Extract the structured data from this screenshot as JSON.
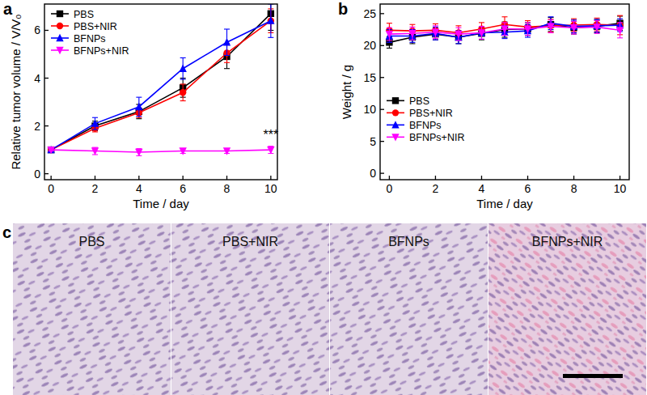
{
  "chart_data": [
    {
      "type": "line",
      "label": "a",
      "x_label": "Time / day",
      "y_label": "Relative tumor volume / V/V₀",
      "x": [
        0,
        2,
        4,
        6,
        8,
        10
      ],
      "xlim": [
        -0.3,
        10.3
      ],
      "xticks": [
        0,
        2,
        4,
        6,
        8,
        10
      ],
      "ylim": [
        -0.25,
        7.1
      ],
      "yticks": [
        0,
        2,
        4,
        6
      ],
      "legend": "upper left",
      "series": [
        {
          "name": "PBS",
          "color": "#000000",
          "marker": "square",
          "values": [
            1,
            2.0,
            2.6,
            3.6,
            4.9,
            6.7
          ],
          "errors": [
            0.05,
            0.2,
            0.3,
            0.4,
            0.5,
            0.7
          ]
        },
        {
          "name": "PBS+NIR",
          "color": "#ff0000",
          "marker": "circle",
          "values": [
            1,
            1.9,
            2.55,
            3.4,
            5.05,
            6.4
          ],
          "errors": [
            0.05,
            0.15,
            0.2,
            0.35,
            0.4,
            0.5
          ]
        },
        {
          "name": "BFNPs",
          "color": "#0000ff",
          "marker": "triangle",
          "values": [
            1,
            2.1,
            2.8,
            4.4,
            5.5,
            6.4
          ],
          "errors": [
            0.05,
            0.25,
            0.4,
            0.45,
            0.55,
            0.7
          ]
        },
        {
          "name": "BFNPs+NIR",
          "color": "#ff00ff",
          "marker": "triangle-down",
          "values": [
            1,
            0.95,
            0.9,
            0.95,
            0.95,
            1.0
          ],
          "errors": [
            0.05,
            0.15,
            0.15,
            0.1,
            0.1,
            0.15
          ]
        }
      ],
      "annotations": [
        {
          "text": "***",
          "x": 10,
          "y": 1.45
        }
      ]
    },
    {
      "type": "line",
      "label": "b",
      "x_label": "Time / day",
      "y_label": "Weight / g",
      "x": [
        0,
        1,
        2,
        3,
        4,
        5,
        6,
        7,
        8,
        9,
        10
      ],
      "xlim": [
        -0.4,
        10.4
      ],
      "xticks": [
        0,
        2,
        4,
        6,
        8,
        10
      ],
      "ylim": [
        -1,
        26.5
      ],
      "yticks": [
        0,
        5,
        10,
        15,
        20,
        25
      ],
      "legend": "center left",
      "series": [
        {
          "name": "PBS",
          "color": "#000000",
          "marker": "square",
          "values": [
            20.5,
            21.3,
            21.8,
            21.3,
            21.9,
            22.5,
            22.6,
            23.3,
            22.8,
            23.0,
            23.5
          ],
          "errors": [
            0.9,
            1.0,
            0.9,
            1.0,
            1.0,
            1.2,
            1.0,
            1.1,
            1.0,
            1.0,
            1.1
          ]
        },
        {
          "name": "PBS+NIR",
          "color": "#ff0000",
          "marker": "circle",
          "values": [
            22.4,
            22.3,
            22.4,
            22.0,
            22.6,
            23.3,
            22.9,
            23.1,
            23.2,
            23.3,
            23.2
          ],
          "errors": [
            1.1,
            1.0,
            1.0,
            1.1,
            1.0,
            1.2,
            1.0,
            1.0,
            1.0,
            1.0,
            1.5
          ]
        },
        {
          "name": "BFNPs",
          "color": "#0000ff",
          "marker": "triangle",
          "values": [
            21.5,
            21.5,
            21.9,
            21.3,
            22.0,
            22.1,
            22.3,
            23.5,
            23.0,
            23.1,
            23.2
          ],
          "errors": [
            1.0,
            1.0,
            1.0,
            1.0,
            1.0,
            1.0,
            1.0,
            1.0,
            1.0,
            1.0,
            1.0
          ]
        },
        {
          "name": "BFNPs+NIR",
          "color": "#ff00ff",
          "marker": "triangle-down",
          "values": [
            21.8,
            21.9,
            22.1,
            21.8,
            22.0,
            22.6,
            22.6,
            23.0,
            22.8,
            22.9,
            22.4
          ],
          "errors": [
            1.0,
            1.0,
            1.0,
            1.0,
            1.0,
            1.0,
            1.0,
            1.0,
            1.0,
            1.0,
            1.2
          ]
        }
      ]
    }
  ],
  "panel_c": {
    "label": "c",
    "captions": [
      "PBS",
      "PBS+NIR",
      "BFNPs",
      "BFNPs+NIR"
    ]
  }
}
